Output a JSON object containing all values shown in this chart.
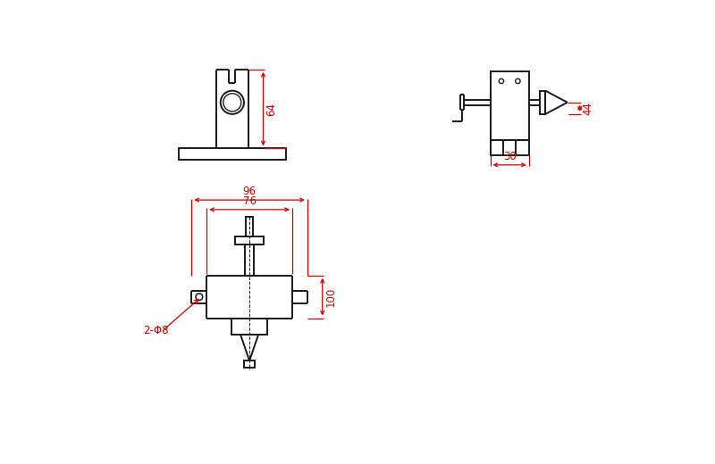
{
  "bg_color": "#ffffff",
  "line_color": "#1a1a1a",
  "dim_color": "#cc0000",
  "line_width": 1.4,
  "dim_lw": 0.9,
  "fig_width": 8.0,
  "fig_height": 5.2,
  "dpi": 100
}
